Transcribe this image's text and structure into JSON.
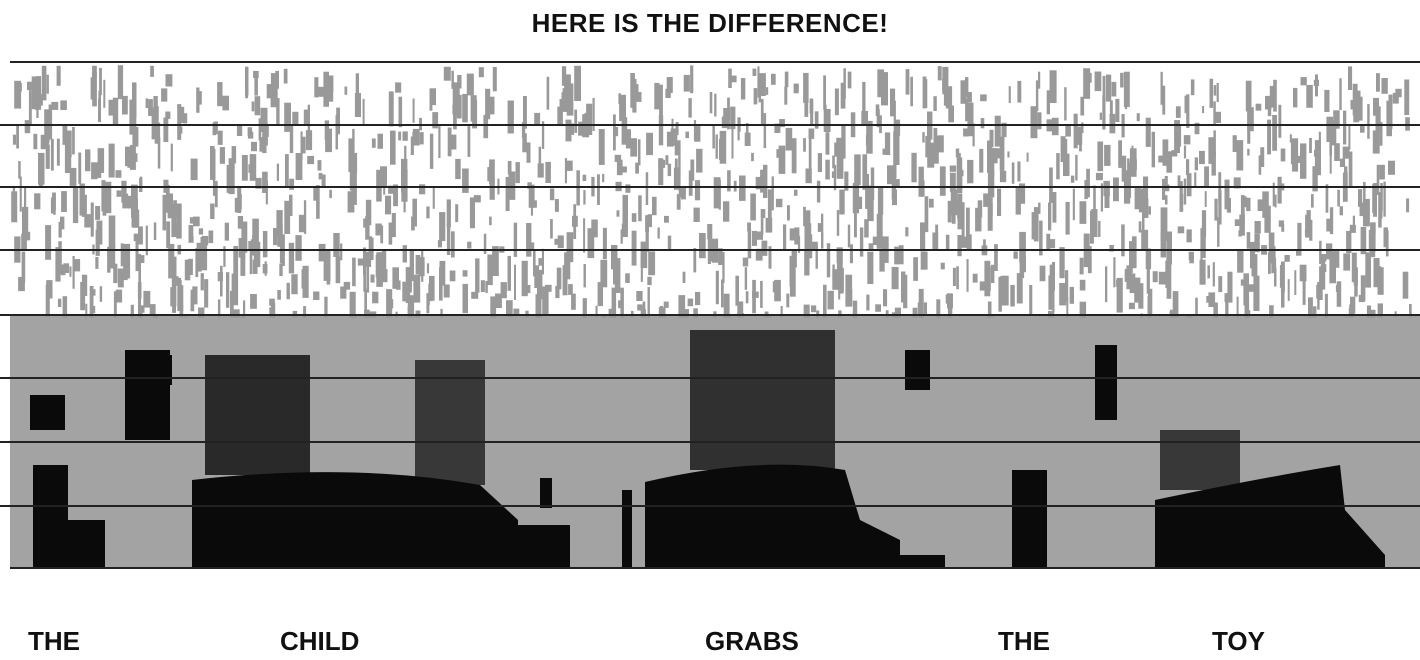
{
  "title": "HERE IS THE DIFFERENCE!",
  "words": [
    "THE",
    "CHILD",
    "GRABS",
    "THE",
    "TOY"
  ],
  "colors": {
    "background": "#ffffff",
    "noise": "#999999",
    "energy": "#0a0a0a",
    "gridline": "#222222"
  }
}
